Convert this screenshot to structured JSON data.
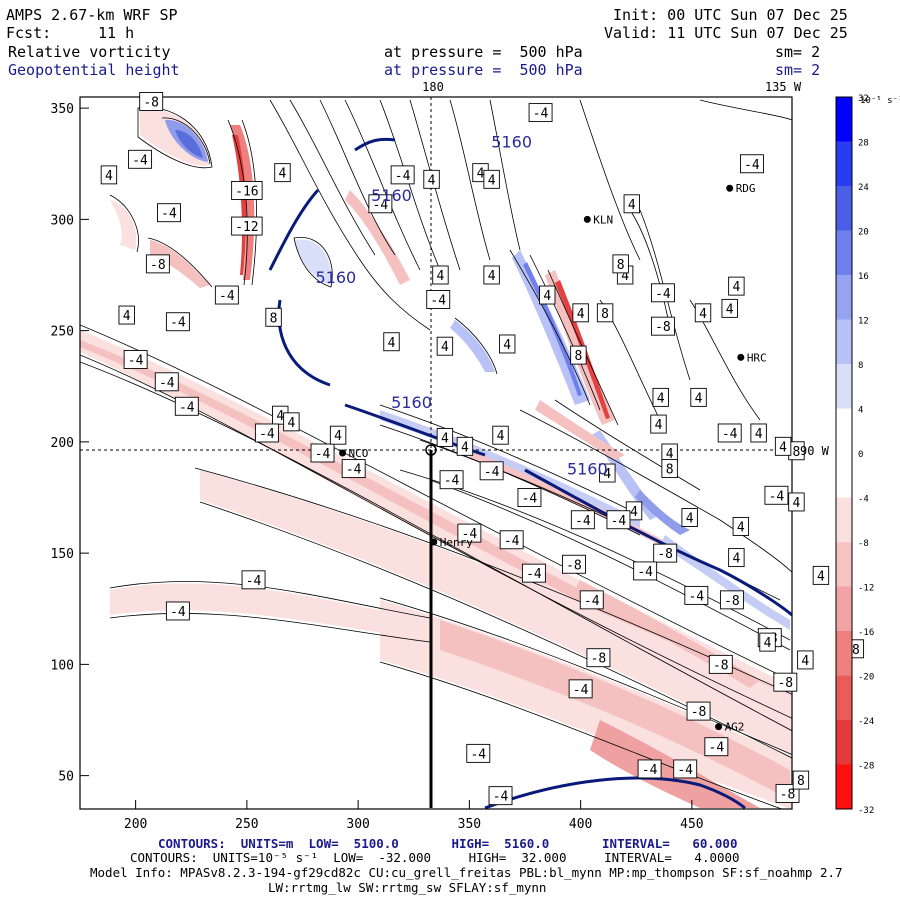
{
  "header": {
    "model": "AMPS 2.67-km WRF SP",
    "init": "Init: 00 UTC Sun 07 Dec 25",
    "fcst_label": "Fcst:",
    "fcst_value": "11 h",
    "valid": "Valid: 11 UTC Sun 07 Dec 25",
    "field1": "Relative vorticity",
    "field1_level": "at pressure =  500 hPa",
    "field1_sm": "sm= 2",
    "field2": "Geopotential height",
    "field2_level": "at pressure =  500 hPa",
    "field2_sm": "sm= 2",
    "lon_label_180": "180",
    "lon_label_135w": "135 W",
    "lon_label_90w": "90 W"
  },
  "footer": {
    "line1": "CONTOURS:  UNITS=m  LOW=  5100.0       HIGH=  5160.0       INTERVAL=   60.000",
    "line2": "CONTOURS:  UNITS=10⁻⁵ s⁻¹  LOW=  -32.000     HIGH=  32.000     INTERVAL=   4.0000",
    "line3": "Model Info: MPASv8.2.3-194-gf29cd82c CU:cu_grell_freitas PBL:bl_mynn MP:mp_thompson SF:sf_noahmp 2.7",
    "line4": "LW:rrtmg_lw SW:rrtmg_sw SFLAY:sf_mynn"
  },
  "colorbar": {
    "unit_label": "10⁻⁵ s⁻¹",
    "levels": [
      "32",
      "28",
      "24",
      "20",
      "16",
      "12",
      "8",
      "4",
      "0",
      "-4",
      "-8",
      "-12",
      "-16",
      "-20",
      "-24",
      "-28",
      "-32"
    ],
    "colors": [
      "#0000ff",
      "#2a3cf2",
      "#4a5ee8",
      "#6f80ec",
      "#96a3f0",
      "#b9c2f6",
      "#dadff9",
      "#ffffff",
      "#ffffff",
      "#fbe0e0",
      "#f7c3c3",
      "#f2a3a3",
      "#ee8080",
      "#ea5c5c",
      "#e53a3a",
      "#ff1010"
    ]
  },
  "axes": {
    "x_ticks": [
      "200",
      "250",
      "300",
      "350",
      "400",
      "450"
    ],
    "y_ticks": [
      "350",
      "300",
      "250",
      "200",
      "150",
      "100",
      "50"
    ]
  },
  "stations": [
    {
      "name": "KLN",
      "x": 403,
      "y": 300
    },
    {
      "name": "RDG",
      "x": 467,
      "y": 314
    },
    {
      "name": "HRC",
      "x": 472,
      "y": 238
    },
    {
      "name": "NCO",
      "x": 293,
      "y": 195
    },
    {
      "name": "Henry",
      "x": 334,
      "y": 155
    },
    {
      "name": "AG2",
      "x": 462,
      "y": 72
    }
  ],
  "height_labels": [
    {
      "text": "5160",
      "x": 369,
      "y": 335
    },
    {
      "text": "5160",
      "x": 315,
      "y": 311
    },
    {
      "text": "5160",
      "x": 290,
      "y": 274
    },
    {
      "text": "5160",
      "x": 324,
      "y": 218
    },
    {
      "text": "5160",
      "x": 403,
      "y": 188
    }
  ],
  "vorticity_labels": [
    {
      "t": "-8",
      "x": 207,
      "y": 353
    },
    {
      "t": "4",
      "x": 188,
      "y": 320
    },
    {
      "t": "-4",
      "x": 202,
      "y": 327
    },
    {
      "t": "-16",
      "x": 250,
      "y": 313
    },
    {
      "t": "4",
      "x": 266,
      "y": 321
    },
    {
      "t": "-4",
      "x": 215,
      "y": 303
    },
    {
      "t": "-12",
      "x": 250,
      "y": 297
    },
    {
      "t": "-8",
      "x": 210,
      "y": 280
    },
    {
      "t": "-4",
      "x": 241,
      "y": 266
    },
    {
      "t": "4",
      "x": 196,
      "y": 257
    },
    {
      "t": "-4",
      "x": 219,
      "y": 254
    },
    {
      "t": "-4",
      "x": 200,
      "y": 237
    },
    {
      "t": "-4",
      "x": 214,
      "y": 227
    },
    {
      "t": "-4",
      "x": 223,
      "y": 216
    },
    {
      "t": "8",
      "x": 262,
      "y": 256
    },
    {
      "t": "4",
      "x": 265,
      "y": 212
    },
    {
      "t": "-4",
      "x": 259,
      "y": 204
    },
    {
      "t": "4",
      "x": 270,
      "y": 209
    },
    {
      "t": "-4",
      "x": 284,
      "y": 195
    },
    {
      "t": "-4",
      "x": 298,
      "y": 188
    },
    {
      "t": "4",
      "x": 291,
      "y": 203
    },
    {
      "t": "-4",
      "x": 320,
      "y": 320
    },
    {
      "t": "-4",
      "x": 310,
      "y": 307
    },
    {
      "t": "4",
      "x": 333,
      "y": 318
    },
    {
      "t": "4",
      "x": 355,
      "y": 321
    },
    {
      "t": "-4",
      "x": 382,
      "y": 348
    },
    {
      "t": "4",
      "x": 360,
      "y": 318
    },
    {
      "t": "4",
      "x": 337,
      "y": 275
    },
    {
      "t": "4",
      "x": 360,
      "y": 275
    },
    {
      "t": "-4",
      "x": 336,
      "y": 264
    },
    {
      "t": "4",
      "x": 315,
      "y": 245
    },
    {
      "t": "4",
      "x": 339,
      "y": 243
    },
    {
      "t": "4",
      "x": 367,
      "y": 244
    },
    {
      "t": "8",
      "x": 399,
      "y": 239
    },
    {
      "t": "4",
      "x": 385,
      "y": 266
    },
    {
      "t": "8",
      "x": 411,
      "y": 258
    },
    {
      "t": "4",
      "x": 420,
      "y": 275
    },
    {
      "t": "-4",
      "x": 437,
      "y": 267
    },
    {
      "t": "-8",
      "x": 437,
      "y": 252
    },
    {
      "t": "4",
      "x": 423,
      "y": 307
    },
    {
      "t": "8",
      "x": 418,
      "y": 280
    },
    {
      "t": "4",
      "x": 400,
      "y": 258
    },
    {
      "t": "4",
      "x": 436,
      "y": 220
    },
    {
      "t": "4",
      "x": 435,
      "y": 208
    },
    {
      "t": "4",
      "x": 453,
      "y": 220
    },
    {
      "t": "4",
      "x": 455,
      "y": 258
    },
    {
      "t": "4",
      "x": 470,
      "y": 270
    },
    {
      "t": "4",
      "x": 467,
      "y": 260
    },
    {
      "t": "-4",
      "x": 477,
      "y": 325
    },
    {
      "t": "4",
      "x": 440,
      "y": 195
    },
    {
      "t": "-4",
      "x": 467,
      "y": 204
    },
    {
      "t": "4",
      "x": 480,
      "y": 204
    },
    {
      "t": "8",
      "x": 497,
      "y": 196
    },
    {
      "t": "4",
      "x": 491,
      "y": 198
    },
    {
      "t": "4",
      "x": 339,
      "y": 202
    },
    {
      "t": "4",
      "x": 364,
      "y": 203
    },
    {
      "t": "4",
      "x": 348,
      "y": 198
    },
    {
      "t": "-4",
      "x": 360,
      "y": 187
    },
    {
      "t": "-4",
      "x": 342,
      "y": 183
    },
    {
      "t": "-4",
      "x": 377,
      "y": 175
    },
    {
      "t": "-4",
      "x": 401,
      "y": 165
    },
    {
      "t": "4",
      "x": 412,
      "y": 186
    },
    {
      "t": "4",
      "x": 424,
      "y": 169
    },
    {
      "t": "8",
      "x": 440,
      "y": 188
    },
    {
      "t": "4",
      "x": 449,
      "y": 166
    },
    {
      "t": "4",
      "x": 472,
      "y": 162
    },
    {
      "t": "-4",
      "x": 417,
      "y": 165
    },
    {
      "t": "-8",
      "x": 438,
      "y": 150
    },
    {
      "t": "-4",
      "x": 429,
      "y": 142
    },
    {
      "t": "-4",
      "x": 350,
      "y": 159
    },
    {
      "t": "-4",
      "x": 369,
      "y": 156
    },
    {
      "t": "-4",
      "x": 379,
      "y": 141
    },
    {
      "t": "-8",
      "x": 397,
      "y": 145
    },
    {
      "t": "-4",
      "x": 405,
      "y": 129
    },
    {
      "t": "-4",
      "x": 452,
      "y": 131
    },
    {
      "t": "-8",
      "x": 468,
      "y": 129
    },
    {
      "t": "4",
      "x": 470,
      "y": 148
    },
    {
      "t": "4",
      "x": 497,
      "y": 173
    },
    {
      "t": "4",
      "x": 508,
      "y": 140
    },
    {
      "t": "-8",
      "x": 485,
      "y": 112
    },
    {
      "t": "4",
      "x": 484,
      "y": 110
    },
    {
      "t": "-8",
      "x": 463,
      "y": 100
    },
    {
      "t": "-8",
      "x": 492,
      "y": 92
    },
    {
      "t": "4",
      "x": 501,
      "y": 102
    },
    {
      "t": "-8",
      "x": 522,
      "y": 107
    },
    {
      "t": "-4",
      "x": 488,
      "y": 176
    },
    {
      "t": "-4",
      "x": 253,
      "y": 138
    },
    {
      "t": "-4",
      "x": 219,
      "y": 124
    },
    {
      "t": "-8",
      "x": 408,
      "y": 103
    },
    {
      "t": "-4",
      "x": 400,
      "y": 89
    },
    {
      "t": "-8",
      "x": 453,
      "y": 79
    },
    {
      "t": "-4",
      "x": 354,
      "y": 60
    },
    {
      "t": "-4",
      "x": 431,
      "y": 53
    },
    {
      "t": "-4",
      "x": 447,
      "y": 53
    },
    {
      "t": "-8",
      "x": 493,
      "y": 42
    },
    {
      "t": "-4",
      "x": 364,
      "y": 41
    },
    {
      "t": "8",
      "x": 499,
      "y": 48
    },
    {
      "t": "-4",
      "x": 461,
      "y": 63
    }
  ]
}
